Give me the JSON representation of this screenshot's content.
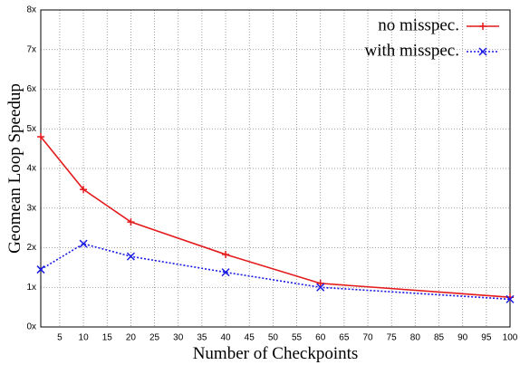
{
  "chart_data": {
    "type": "line",
    "x_label": "Number of Checkpoints",
    "y_label": "Geomean Loop Speedup",
    "x": [
      1,
      10,
      20,
      40,
      60,
      100
    ],
    "series": [
      {
        "name": "no misspec.",
        "color": "#e41a1c",
        "marker": "plus",
        "dash": "solid",
        "values": [
          4.8,
          3.47,
          2.65,
          1.83,
          1.1,
          0.75
        ]
      },
      {
        "name": "with misspec.",
        "color": "#1a1ae4",
        "marker": "cross",
        "dash": "dotted",
        "values": [
          1.45,
          2.1,
          1.78,
          1.38,
          1.0,
          0.7
        ]
      }
    ],
    "xlim": [
      1,
      100
    ],
    "xticks": [
      5,
      10,
      15,
      20,
      25,
      30,
      35,
      40,
      45,
      50,
      55,
      60,
      65,
      70,
      75,
      80,
      85,
      90,
      95,
      100
    ],
    "ylim": [
      0,
      8
    ],
    "yticks": [
      {
        "value": 0,
        "label": "0x"
      },
      {
        "value": 1,
        "label": "1x"
      },
      {
        "value": 2,
        "label": "2x"
      },
      {
        "value": 3,
        "label": "3x"
      },
      {
        "value": 4,
        "label": "4x"
      },
      {
        "value": 5,
        "label": "5x"
      },
      {
        "value": 6,
        "label": "6x"
      },
      {
        "value": 7,
        "label": "7x"
      },
      {
        "value": 8,
        "label": "8x"
      }
    ],
    "grid": true,
    "legend": "top-right"
  }
}
